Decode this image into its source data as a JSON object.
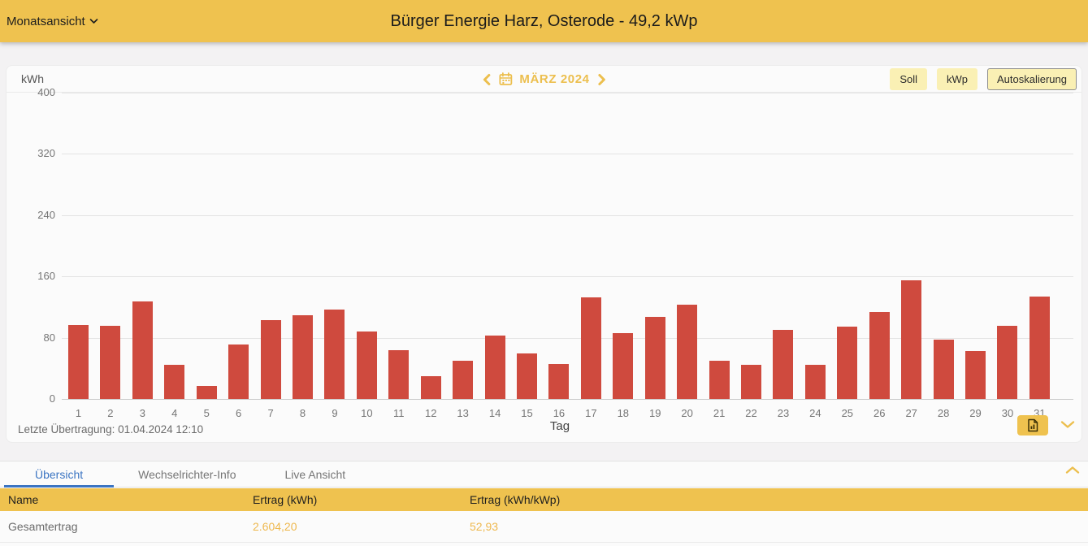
{
  "appbar": {
    "view_selector": "Monatsansicht",
    "title": "Bürger Energie Harz, Osterode - 49,2 kWp"
  },
  "chart_panel": {
    "unit_label": "kWh",
    "month_nav": {
      "label": "MÄRZ 2024"
    },
    "buttons": {
      "soll": "Soll",
      "kwp": "kWp",
      "autoscale": "Autoskalierung"
    },
    "footer": {
      "last_transmission": "Letzte Übertragung: 01.04.2024 12:10"
    }
  },
  "chart_data": {
    "type": "bar",
    "title": "MÄRZ 2024",
    "xlabel": "Tag",
    "ylabel": "kWh",
    "ylim": [
      0,
      400
    ],
    "yticks": [
      0,
      80,
      160,
      240,
      320,
      400
    ],
    "grid": true,
    "bar_color": "#cf4a3e",
    "categories": [
      1,
      2,
      3,
      4,
      5,
      6,
      7,
      8,
      9,
      10,
      11,
      12,
      13,
      14,
      15,
      16,
      17,
      18,
      19,
      20,
      21,
      22,
      23,
      24,
      25,
      26,
      27,
      28,
      29,
      30,
      31
    ],
    "values": [
      97,
      96,
      127,
      45,
      17,
      71,
      103,
      109,
      117,
      88,
      64,
      30,
      50,
      83,
      59,
      46,
      133,
      86,
      107,
      123,
      50,
      45,
      90,
      45,
      94,
      114,
      155,
      77,
      63,
      95,
      134
    ]
  },
  "tabs": [
    {
      "label": "Übersicht",
      "active": true
    },
    {
      "label": "Wechselrichter-Info",
      "active": false
    },
    {
      "label": "Live Ansicht",
      "active": false
    }
  ],
  "table": {
    "columns": [
      "Name",
      "Ertrag (kWh)",
      "Ertrag (kWh/kWp)"
    ],
    "rows": [
      {
        "name": "Gesamtertrag",
        "ertrag_kwh": "2.604,20",
        "ertrag_kwh_kwp": "52,93"
      }
    ]
  },
  "icons": {
    "view_dropdown": "chevron-down",
    "month_prev": "chevron-left",
    "calendar": "calendar",
    "month_next": "chevron-right",
    "export": "file-chart",
    "collapse_chart": "chevron-down",
    "collapse_panel": "chevron-up"
  },
  "colors": {
    "accent": "#efc24f",
    "bar": "#cf4a3e",
    "chip_bg": "#faf0b4",
    "tab_active": "#3b74c2",
    "value_text": "#eeb84e",
    "panel_bg": "#fbfbfb"
  }
}
